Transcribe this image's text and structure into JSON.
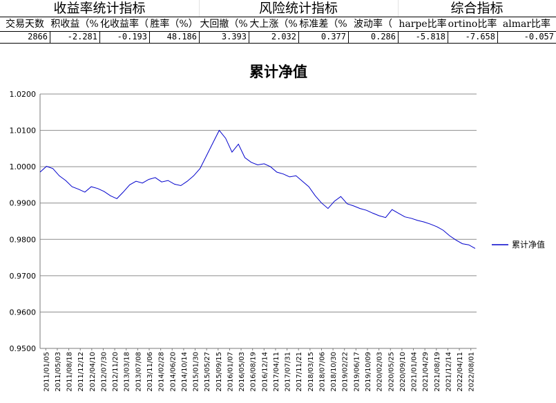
{
  "stats_table": {
    "groups": [
      "收益率统计指标",
      "风险统计指标",
      "综合指标"
    ],
    "headers": [
      "交易天数",
      "积收益（%",
      "化收益率（",
      "胜率（%）",
      "大回撤（%",
      "大上涨（%",
      "标准差（%",
      "波动率（",
      "harpe比率",
      "ortino比率",
      "almar比率"
    ],
    "values": [
      "2866",
      "-2.281",
      "-0.193",
      "48.186",
      "3.393",
      "2.032",
      "0.377",
      "0.286",
      "-5.818",
      "-7.658",
      "-0.057"
    ]
  },
  "chart_data": {
    "type": "line",
    "title": "累计净值",
    "xlabel": "",
    "ylabel": "",
    "ylim": [
      0.95,
      1.02
    ],
    "y_ticks": [
      "0.9500",
      "0.9600",
      "0.9700",
      "0.9800",
      "0.9900",
      "1.0000",
      "1.0100",
      "1.0200"
    ],
    "x_ticks": [
      "2011/01/05",
      "2011/05/03",
      "2011/08/18",
      "2011/12/12",
      "2012/04/10",
      "2012/07/30",
      "2012/11/20",
      "2013/03/18",
      "2013/07/08",
      "2013/11/06",
      "2014/02/28",
      "2014/06/20",
      "2014/10/14",
      "2015/01/30",
      "2015/05/27",
      "2015/09/15",
      "2016/01/07",
      "2016/05/03",
      "2016/08/19",
      "2016/12/14",
      "2017/04/11",
      "2017/07/31",
      "2017/11/21",
      "2018/03/15",
      "2018/07/06",
      "2018/10/30",
      "2019/02/22",
      "2019/06/17",
      "2019/10/09",
      "2020/02/03",
      "2020/05/25",
      "2020/09/10",
      "2021/01/04",
      "2021/04/29",
      "2021/08/19",
      "2021/12/14",
      "2022/04/11",
      "2022/08/01"
    ],
    "grid": true,
    "legend_position": "right",
    "series": [
      {
        "name": "累计净值",
        "color": "#0000cc",
        "values": [
          0.9985,
          1.0001,
          0.9995,
          0.9975,
          0.9962,
          0.9945,
          0.9938,
          0.993,
          0.9945,
          0.994,
          0.9932,
          0.992,
          0.9912,
          0.993,
          0.995,
          0.996,
          0.9955,
          0.9965,
          0.997,
          0.9958,
          0.9962,
          0.9952,
          0.9948,
          0.996,
          0.9975,
          0.9995,
          1.003,
          1.0065,
          1.01,
          1.0078,
          1.004,
          1.0062,
          1.0025,
          1.0012,
          1.0005,
          1.0008,
          1.0,
          0.9985,
          0.998,
          0.9972,
          0.9975,
          0.996,
          0.9945,
          0.992,
          0.99,
          0.9885,
          0.9905,
          0.9918,
          0.9898,
          0.9892,
          0.9885,
          0.988,
          0.9872,
          0.9865,
          0.986,
          0.9882,
          0.9872,
          0.9862,
          0.9858,
          0.9852,
          0.9848,
          0.9842,
          0.9835,
          0.9825,
          0.981,
          0.9798,
          0.9788,
          0.9785,
          0.9775
        ]
      }
    ]
  }
}
